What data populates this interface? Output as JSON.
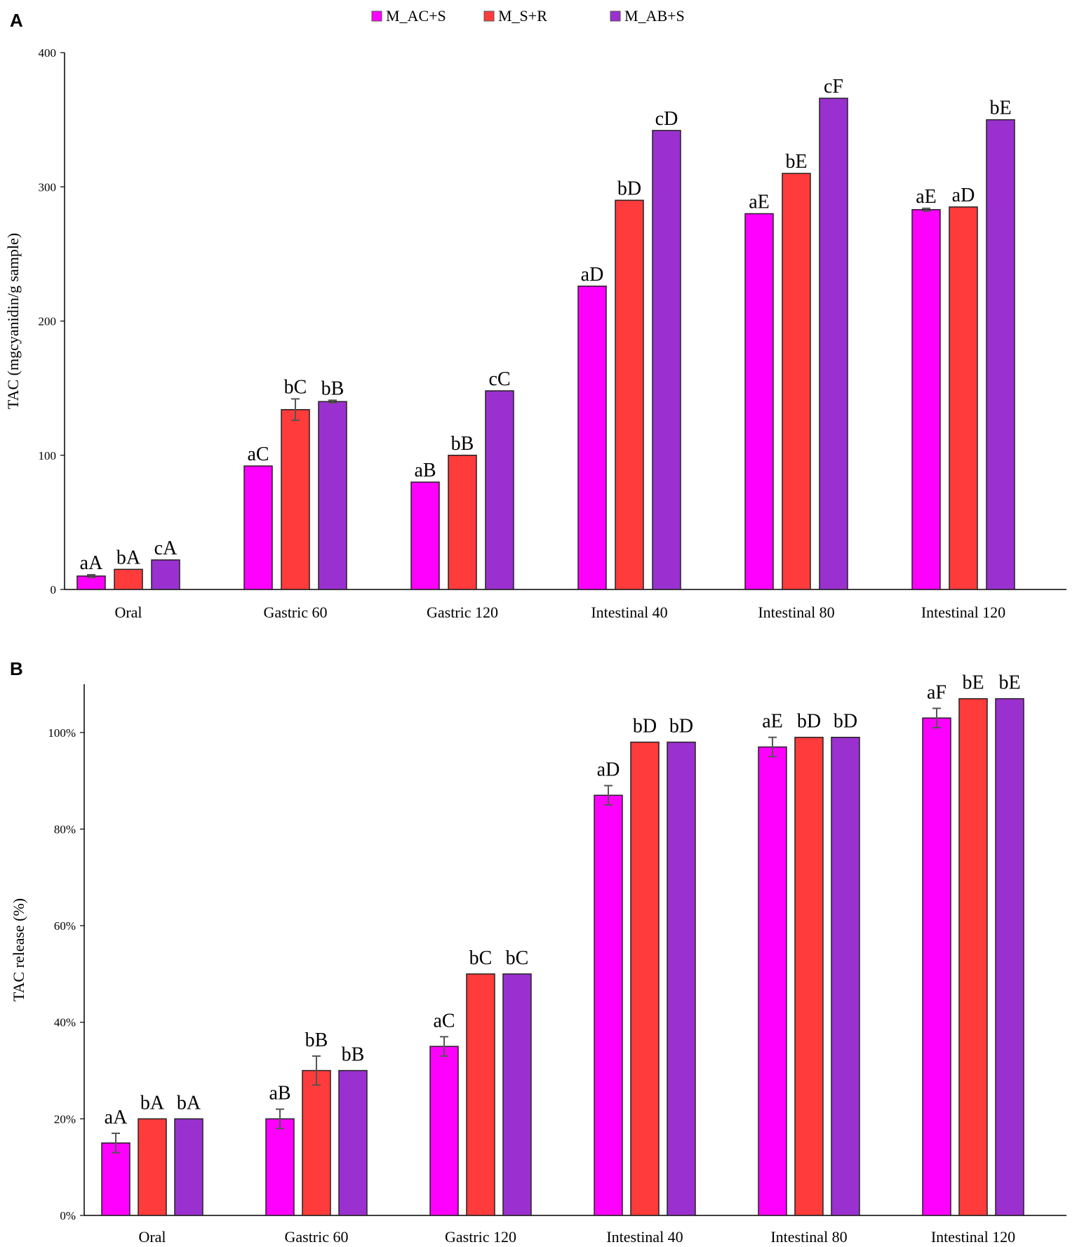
{
  "colors": {
    "M_AC+S": "#ff00ff",
    "M_S+R": "#ff3b3b",
    "M_AB+S": "#9b30d0",
    "axis": "#000000",
    "error": "#555555"
  },
  "legend": [
    "M_AC+S",
    "M_S+R",
    "M_AB+S"
  ],
  "chart_data": [
    {
      "panel": "A",
      "type": "bar",
      "ylabel": "TAC (mgcyanidin/g sample)",
      "ylim": [
        0,
        400
      ],
      "yticks": [
        "0",
        "100",
        "200",
        "300",
        "400"
      ],
      "ytick_values": [
        0,
        100,
        200,
        300,
        400
      ],
      "categories": [
        "Oral",
        "Gastric 60",
        "Gastric 120",
        "Intestinal 40",
        "Intestinal 80",
        "Intestinal 120"
      ],
      "series": [
        {
          "name": "M_AC+S",
          "values": [
            10,
            92,
            80,
            226,
            280,
            283
          ],
          "errors": [
            1,
            0.5,
            0.5,
            0.5,
            0.5,
            1
          ],
          "labels": [
            "aA",
            "aC",
            "aB",
            "aD",
            "aE",
            "aE"
          ]
        },
        {
          "name": "M_S+R",
          "values": [
            15,
            134,
            100,
            290,
            310,
            285
          ],
          "errors": [
            0.5,
            8,
            0.5,
            0.5,
            0.5,
            0.5
          ],
          "labels": [
            "bA",
            "bC",
            "bB",
            "bD",
            "bE",
            "aD"
          ]
        },
        {
          "name": "M_AB+S",
          "values": [
            22,
            140,
            148,
            342,
            366,
            350
          ],
          "errors": [
            0.5,
            1,
            0.5,
            0.5,
            0.5,
            0.5
          ],
          "labels": [
            "cA",
            "bB",
            "cC",
            "cD",
            "cF",
            "bE"
          ]
        }
      ]
    },
    {
      "panel": "B",
      "type": "bar",
      "ylabel": "TAC release (%)",
      "ylim": [
        0,
        110
      ],
      "yticks": [
        "0%",
        "20%",
        "40%",
        "60%",
        "80%",
        "100%"
      ],
      "ytick_values": [
        0,
        20,
        40,
        60,
        80,
        100
      ],
      "categories": [
        "Oral",
        "Gastric 60",
        "Gastric 120",
        "Intestinal 40",
        "Intestinal 80",
        "Intestinal 120"
      ],
      "series": [
        {
          "name": "M_AC+S",
          "values": [
            15,
            20,
            35,
            87,
            97,
            103
          ],
          "errors": [
            2,
            2,
            2,
            2,
            2,
            2
          ],
          "labels": [
            "aA",
            "aB",
            "aC",
            "aD",
            "aE",
            "aF"
          ]
        },
        {
          "name": "M_S+R",
          "values": [
            20,
            30,
            50,
            98,
            99,
            107
          ],
          "errors": [
            0,
            3,
            0,
            0,
            0,
            0
          ],
          "labels": [
            "bA",
            "bB",
            "bC",
            "bD",
            "bD",
            "bE"
          ]
        },
        {
          "name": "M_AB+S",
          "values": [
            20,
            30,
            50,
            98,
            99,
            107
          ],
          "errors": [
            0,
            0.3,
            0,
            0,
            0,
            0
          ],
          "labels": [
            "bA",
            "bB",
            "bC",
            "bD",
            "bD",
            "bE"
          ]
        }
      ]
    }
  ]
}
